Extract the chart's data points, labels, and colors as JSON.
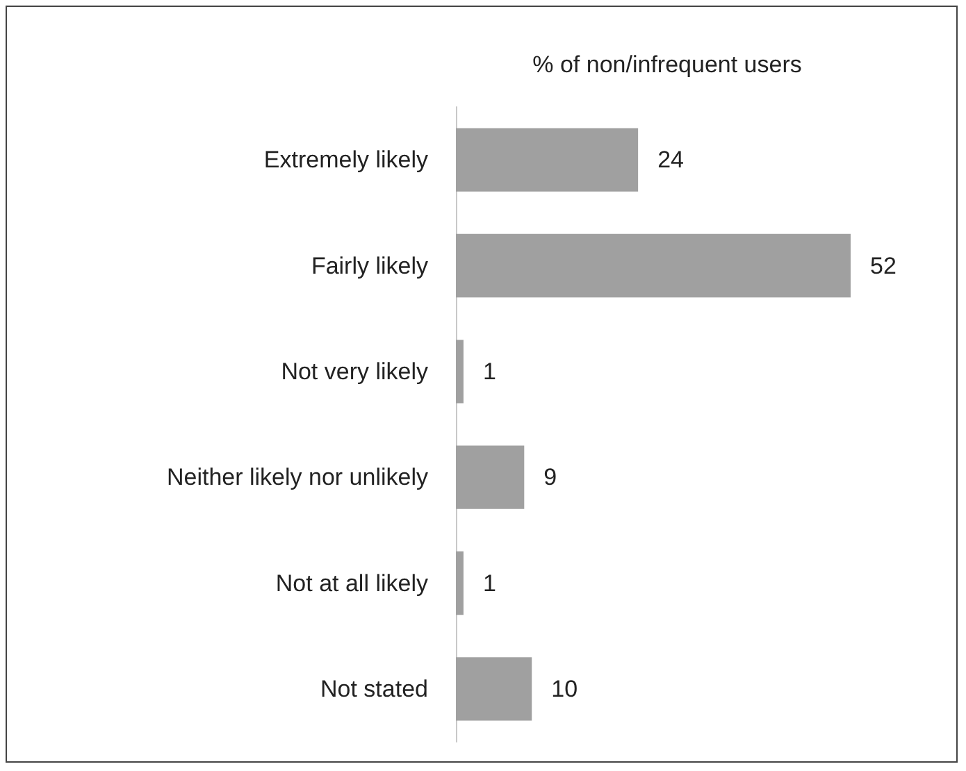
{
  "chart_data": {
    "type": "bar",
    "orientation": "horizontal",
    "title": "% of non/infrequent users",
    "categories": [
      "Extremely likely",
      "Fairly likely",
      "Not very likely",
      "Neither likely nor unlikely",
      "Not at all likely",
      "Not stated"
    ],
    "values": [
      24,
      52,
      1,
      9,
      1,
      10
    ],
    "color": "#a0a0a0",
    "data_labels": true
  }
}
